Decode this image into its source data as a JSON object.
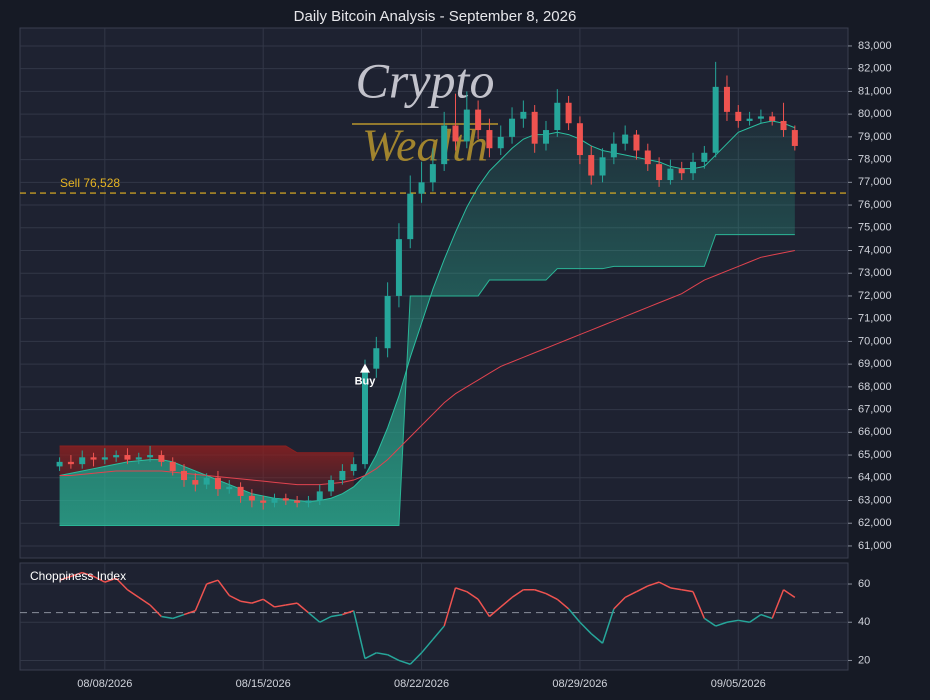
{
  "chart_data": {
    "type": "candlestick",
    "title": "Daily Bitcoin Analysis - September 8, 2026",
    "watermark": [
      "Crypto",
      "Wealth"
    ],
    "xlim": [
      -3.5,
      69.7
    ],
    "xticks": [
      {
        "value": 4,
        "label": "08/08/2026"
      },
      {
        "value": 18,
        "label": "08/15/2026"
      },
      {
        "value": 32,
        "label": "08/22/2026"
      },
      {
        "value": 46,
        "label": "08/29/2026"
      },
      {
        "value": 60,
        "label": "09/05/2026"
      }
    ],
    "ylim": [
      60470,
      83790
    ],
    "yticks": [
      {
        "value": 61000,
        "label": "61,000"
      },
      {
        "value": 62000,
        "label": "62,000"
      },
      {
        "value": 63000,
        "label": "63,000"
      },
      {
        "value": 64000,
        "label": "64,000"
      },
      {
        "value": 65000,
        "label": "65,000"
      },
      {
        "value": 66000,
        "label": "66,000"
      },
      {
        "value": 67000,
        "label": "67,000"
      },
      {
        "value": 68000,
        "label": "68,000"
      },
      {
        "value": 69000,
        "label": "69,000"
      },
      {
        "value": 70000,
        "label": "70,000"
      },
      {
        "value": 71000,
        "label": "71,000"
      },
      {
        "value": 72000,
        "label": "72,000"
      },
      {
        "value": 73000,
        "label": "73,000"
      },
      {
        "value": 74000,
        "label": "74,000"
      },
      {
        "value": 75000,
        "label": "75,000"
      },
      {
        "value": 76000,
        "label": "76,000"
      },
      {
        "value": 77000,
        "label": "77,000"
      },
      {
        "value": 78000,
        "label": "78,000"
      },
      {
        "value": 79000,
        "label": "79,000"
      },
      {
        "value": 80000,
        "label": "80,000"
      },
      {
        "value": 81000,
        "label": "81,000"
      },
      {
        "value": 82000,
        "label": "82,000"
      },
      {
        "value": 83000,
        "label": "83,000"
      }
    ],
    "grid": true,
    "up_color": "#26a69a",
    "down_color": "#ef5350",
    "open": [
      64500,
      64700,
      64600,
      64900,
      64800,
      64900,
      65000,
      64800,
      64900,
      65000,
      64700,
      64300,
      63900,
      63700,
      64000,
      63500,
      63600,
      63200,
      63000,
      62900,
      63100,
      63000,
      62900,
      63000,
      63400,
      63900,
      64300,
      64600,
      68800,
      69700,
      72000,
      74500,
      76500,
      77000,
      77800,
      79500,
      78800,
      80200,
      79300,
      78500,
      79000,
      79800,
      80100,
      78700,
      79300,
      80500,
      79600,
      78200,
      77300,
      78100,
      78700,
      79100,
      78400,
      77800,
      77100,
      77600,
      77400,
      77900,
      78300,
      81200,
      80100,
      79700,
      79800,
      79900,
      79700,
      79300
    ],
    "high": [
      64900,
      65000,
      65200,
      65100,
      65300,
      65200,
      65300,
      65100,
      65400,
      65200,
      64900,
      64600,
      64200,
      64200,
      64300,
      63900,
      63800,
      63500,
      63200,
      63300,
      63300,
      63200,
      63200,
      63700,
      64100,
      64600,
      64900,
      69200,
      70200,
      72600,
      75200,
      77300,
      77900,
      78500,
      80100,
      80900,
      81000,
      80600,
      79800,
      79500,
      80300,
      80600,
      80400,
      79700,
      81100,
      80800,
      79900,
      78600,
      78500,
      79200,
      79500,
      79300,
      78700,
      78100,
      78000,
      77900,
      78300,
      78600,
      82300,
      81700,
      80400,
      80100,
      80200,
      80100,
      80500,
      79500
    ],
    "low": [
      64300,
      64400,
      64400,
      64500,
      64600,
      64700,
      64600,
      64600,
      64700,
      64500,
      64100,
      63600,
      63400,
      63500,
      63200,
      63300,
      62900,
      62700,
      62600,
      62700,
      62800,
      62700,
      62700,
      62800,
      63200,
      63700,
      64100,
      64400,
      68400,
      69300,
      71500,
      74100,
      76100,
      76600,
      77500,
      78400,
      78500,
      78900,
      78100,
      78200,
      78700,
      79400,
      78300,
      78400,
      79000,
      79300,
      77800,
      76900,
      77000,
      77800,
      78400,
      78000,
      77500,
      76800,
      76900,
      77100,
      77100,
      77600,
      78100,
      79700,
      79400,
      79500,
      79600,
      79500,
      79000,
      78400
    ],
    "close": [
      64700,
      64600,
      64900,
      64800,
      64900,
      65000,
      64800,
      64900,
      65000,
      64700,
      64300,
      63900,
      63700,
      64000,
      63500,
      63600,
      63200,
      63000,
      62900,
      63100,
      63000,
      62900,
      63000,
      63400,
      63900,
      64300,
      64600,
      68800,
      69700,
      72000,
      74500,
      76500,
      77000,
      77800,
      79500,
      78800,
      80200,
      79300,
      78500,
      79000,
      79800,
      80100,
      78700,
      79300,
      80500,
      79600,
      78200,
      77300,
      78100,
      78700,
      79100,
      78400,
      77800,
      77100,
      77600,
      77400,
      77900,
      78300,
      81200,
      80100,
      79700,
      79800,
      79900,
      79700,
      79300,
      78600
    ],
    "lines": [
      {
        "color": "#2bbfa0",
        "values": [
          64100,
          64200,
          64300,
          64400,
          64500,
          64600,
          64700,
          64750,
          64800,
          64800,
          64700,
          64500,
          64300,
          64100,
          63900,
          63700,
          63500,
          63300,
          63200,
          63100,
          63050,
          63000,
          62950,
          63000,
          63100,
          63300,
          63600,
          64100,
          65000,
          66200,
          67600,
          69300,
          70800,
          72300,
          73600,
          74800,
          75900,
          76800,
          77500,
          78000,
          78500,
          78900,
          79100,
          79100,
          79200,
          79100,
          78900,
          78600,
          78400,
          78300,
          78200,
          78100,
          78000,
          77900,
          77700,
          77600,
          77600,
          77700,
          78200,
          78700,
          79200,
          79400,
          79600,
          79700,
          79600,
          79400
        ]
      },
      {
        "color": "#e0434f",
        "values": [
          64100,
          64100,
          64150,
          64200,
          64250,
          64300,
          64300,
          64300,
          64300,
          64300,
          64250,
          64200,
          64150,
          64100,
          64050,
          64000,
          63950,
          63900,
          63850,
          63800,
          63750,
          63700,
          63700,
          63700,
          63750,
          63800,
          63900,
          64100,
          64400,
          64800,
          65300,
          65800,
          66300,
          66800,
          67300,
          67700,
          68000,
          68300,
          68600,
          68900,
          69100,
          69300,
          69500,
          69700,
          69900,
          70100,
          70300,
          70500,
          70700,
          70900,
          71100,
          71300,
          71500,
          71700,
          71900,
          72100,
          72400,
          72700,
          72900,
          73100,
          73300,
          73500,
          73700,
          73800,
          73900,
          74000
        ]
      }
    ],
    "bands": {
      "upper": [
        65400,
        65400,
        65400,
        65400,
        65400,
        65400,
        65400,
        65400,
        65400,
        65400,
        65400,
        65400,
        65400,
        65400,
        65400,
        65400,
        65400,
        65400,
        65400,
        65400,
        65400,
        65100,
        65100,
        65100,
        65100,
        65100,
        65100,
        null,
        null,
        null,
        null,
        null,
        null,
        null,
        null,
        null,
        null,
        null,
        null,
        null,
        null,
        null,
        null,
        null,
        null,
        null,
        null,
        null,
        null,
        null,
        null,
        null,
        null,
        null,
        null,
        null,
        null,
        null,
        null,
        null,
        null,
        null,
        null,
        null,
        null,
        null
      ],
      "lower": [
        61900,
        61900,
        61900,
        61900,
        61900,
        61900,
        61900,
        61900,
        61900,
        61900,
        61900,
        61900,
        61900,
        61900,
        61900,
        61900,
        61900,
        61900,
        61900,
        61900,
        61900,
        61900,
        61900,
        61900,
        61900,
        61900,
        61900,
        61900,
        61900,
        61900,
        61900,
        72000,
        72000,
        72000,
        72000,
        72000,
        72000,
        72000,
        72700,
        72700,
        72700,
        72700,
        72700,
        72700,
        73200,
        73200,
        73200,
        73200,
        73200,
        73300,
        73300,
        73300,
        73300,
        73300,
        73300,
        73300,
        73300,
        73300,
        74700,
        74700,
        74700,
        74700,
        74700,
        74700,
        74700,
        74700
      ],
      "upper_color": "#8b2020",
      "lower_color": "#2bb596"
    },
    "sell": {
      "label": "Sell 76,528",
      "value": 76528,
      "color": "#e6b422"
    },
    "buy": {
      "label": "Buy",
      "x": 27,
      "value": 68800
    },
    "indicator": {
      "title": "Choppiness Index",
      "values": [
        62,
        64,
        66,
        64,
        61,
        63,
        57,
        53,
        49,
        43,
        42,
        44,
        46,
        60,
        62,
        54,
        51,
        50,
        52,
        48,
        49,
        50,
        45,
        40,
        43,
        44,
        46,
        21,
        24,
        23,
        20,
        18,
        24,
        31,
        38,
        58,
        56,
        52,
        43,
        48,
        53,
        57,
        57,
        55,
        52,
        47,
        40,
        34,
        29,
        47,
        53,
        56,
        59,
        61,
        58,
        57,
        56,
        42,
        38,
        40,
        41,
        40,
        44,
        42,
        57,
        53
      ],
      "threshold": 45,
      "ylim": [
        15,
        71
      ],
      "yticks": [
        20,
        40,
        60
      ],
      "above_color": "#ef5350",
      "below_color": "#26a69a"
    }
  }
}
